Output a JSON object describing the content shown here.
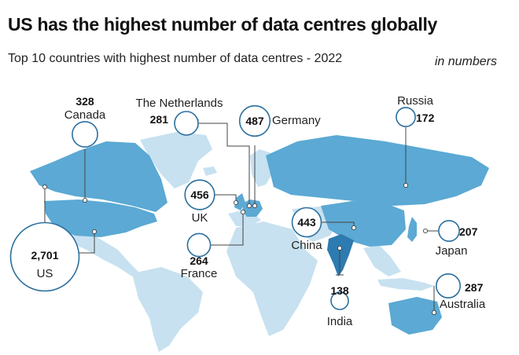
{
  "title": "US has the highest number of data centres globally",
  "subtitle": "Top 10 countries with highest number of data centres - 2022",
  "unit_note": "in numbers",
  "colors": {
    "land_other": "#c7e1f0",
    "land_top10": "#5ba9d4",
    "india": "#2d7bb0",
    "bubble_stroke": "#2b6f9e",
    "leader": "#444444"
  },
  "chart_data": {
    "type": "map-bubble",
    "title": "US has the highest number of data centres globally",
    "subtitle": "Top 10 countries with highest number of data centres - 2022",
    "unit": "in numbers",
    "data": [
      {
        "country": "US",
        "value": "2,701",
        "value_num": 2701
      },
      {
        "country": "Germany",
        "value": "487",
        "value_num": 487
      },
      {
        "country": "UK",
        "value": "456",
        "value_num": 456
      },
      {
        "country": "China",
        "value": "443",
        "value_num": 443
      },
      {
        "country": "Canada",
        "value": "328",
        "value_num": 328
      },
      {
        "country": "Australia",
        "value": "287",
        "value_num": 287
      },
      {
        "country": "The Netherlands",
        "value": "281",
        "value_num": 281
      },
      {
        "country": "France",
        "value": "264",
        "value_num": 264
      },
      {
        "country": "Japan",
        "value": "207",
        "value_num": 207
      },
      {
        "country": "Russia",
        "value": "172",
        "value_num": 172
      },
      {
        "country": "India",
        "value": "138",
        "value_num": 138
      }
    ]
  }
}
